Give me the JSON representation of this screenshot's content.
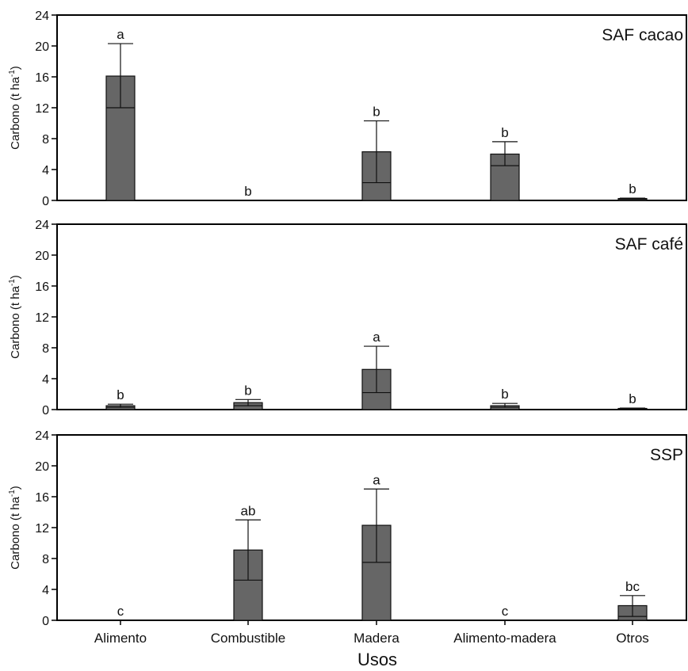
{
  "chart_data": {
    "type": "bar",
    "categories": [
      "Alimento",
      "Combustible",
      "Madera",
      "Alimento-madera",
      "Otros"
    ],
    "xlabel": "Usos",
    "ylabel_main": "Carbono (t ha",
    "ylabel_sup": "-1",
    "ylabel_close": ")",
    "ylim": [
      0,
      24
    ],
    "yticks": [
      "0",
      "4",
      "8",
      "12",
      "16",
      "20",
      "24"
    ],
    "bar_color": "#666666",
    "panels": [
      {
        "title": "SAF cacao",
        "values": [
          16.1,
          0,
          6.3,
          6.0,
          0.25
        ],
        "lower": [
          12.0,
          0,
          2.3,
          4.5,
          0.15
        ],
        "upper": [
          20.3,
          0,
          10.3,
          7.6,
          0.3
        ],
        "letters": [
          "a",
          "b",
          "b",
          "b",
          "b"
        ]
      },
      {
        "title": "SAF café",
        "values": [
          0.5,
          0.9,
          5.2,
          0.5,
          0.15
        ],
        "lower": [
          0.3,
          0.5,
          2.2,
          0.3,
          0.1
        ],
        "upper": [
          0.7,
          1.3,
          8.2,
          0.8,
          0.2
        ],
        "letters": [
          "b",
          "b",
          "a",
          "b",
          "b"
        ]
      },
      {
        "title": "SSP",
        "values": [
          0,
          9.1,
          12.3,
          0,
          1.9
        ],
        "lower": [
          0,
          5.2,
          7.5,
          0,
          0.5
        ],
        "upper": [
          0,
          13.0,
          17.0,
          0,
          3.2
        ],
        "letters": [
          "c",
          "ab",
          "a",
          "c",
          "bc"
        ]
      }
    ]
  }
}
